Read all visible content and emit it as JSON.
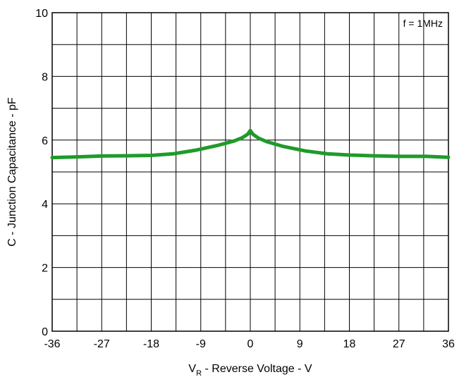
{
  "chart_data": {
    "type": "line",
    "title": "",
    "xlabel_main": "V",
    "xlabel_sub": "R",
    "xlabel_rest": " - Reverse Voltage - V",
    "ylabel": "C - Junction Capacitance - pF",
    "annotation": "f = 1MHz",
    "xlim": [
      -36,
      36
    ],
    "ylim": [
      0,
      10
    ],
    "xticks": [
      -36,
      -27,
      -18,
      -9,
      0,
      9,
      18,
      27,
      36
    ],
    "yticks": [
      0,
      2,
      4,
      6,
      8,
      10
    ],
    "grid": true,
    "line_color": "#1e9b2a",
    "series": [
      {
        "x": [
          -36,
          -32,
          -27,
          -22,
          -18,
          -14,
          -10,
          -6,
          -3,
          -1.5,
          -0.5,
          0,
          0.5,
          1.5,
          3,
          6,
          10,
          14,
          18,
          22,
          27,
          32,
          36
        ],
        "y": [
          5.45,
          5.47,
          5.5,
          5.51,
          5.52,
          5.57,
          5.68,
          5.83,
          5.97,
          6.07,
          6.18,
          6.3,
          6.18,
          6.06,
          5.95,
          5.8,
          5.66,
          5.57,
          5.53,
          5.51,
          5.49,
          5.49,
          5.46
        ]
      }
    ]
  }
}
